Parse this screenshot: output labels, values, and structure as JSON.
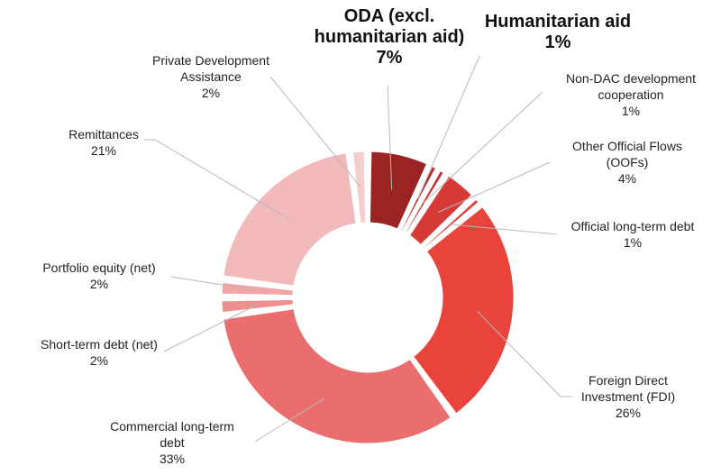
{
  "chart_data": {
    "type": "pie",
    "variant": "donut",
    "start": "top, clockwise",
    "slices": [
      {
        "label_lines": [
          "ODA (excl.",
          "humanitarian aid)"
        ],
        "pct_label": "7%",
        "value": 7,
        "color": "#9b2423",
        "emphasis": true
      },
      {
        "label_lines": [
          "Humanitarian aid"
        ],
        "pct_label": "1%",
        "value": 1,
        "color": "#b52b2a",
        "emphasis": true
      },
      {
        "label_lines": [
          "Non-DAC development",
          "cooperation"
        ],
        "pct_label": "1%",
        "value": 1,
        "color": "#c33230",
        "emphasis": false
      },
      {
        "label_lines": [
          "Other Official Flows",
          "(OOFs)"
        ],
        "pct_label": "4%",
        "value": 4,
        "color": "#d53a36",
        "emphasis": false
      },
      {
        "label_lines": [
          "Official long-term debt"
        ],
        "pct_label": "1%",
        "value": 1,
        "color": "#de3f3a",
        "emphasis": false
      },
      {
        "label_lines": [
          "Foreign Direct",
          "Investment (FDI)"
        ],
        "pct_label": "26%",
        "value": 26,
        "color": "#e8443c",
        "emphasis": false
      },
      {
        "label_lines": [
          "Commercial long-term",
          "debt"
        ],
        "pct_label": "33%",
        "value": 33,
        "color": "#ea6e6e",
        "emphasis": false
      },
      {
        "label_lines": [
          "Short-term debt (net)"
        ],
        "pct_label": "2%",
        "value": 2,
        "color": "#ee8f8f",
        "emphasis": false
      },
      {
        "label_lines": [
          "Portfolio equity (net)"
        ],
        "pct_label": "2%",
        "value": 2,
        "color": "#f1a5a5",
        "emphasis": false
      },
      {
        "label_lines": [
          "Remittances"
        ],
        "pct_label": "21%",
        "value": 21,
        "color": "#f2baba",
        "emphasis": false
      },
      {
        "label_lines": [
          "Private Development",
          "Assistance"
        ],
        "pct_label": "2%",
        "value": 2,
        "color": "#f5cdcd",
        "emphasis": false
      }
    ]
  }
}
